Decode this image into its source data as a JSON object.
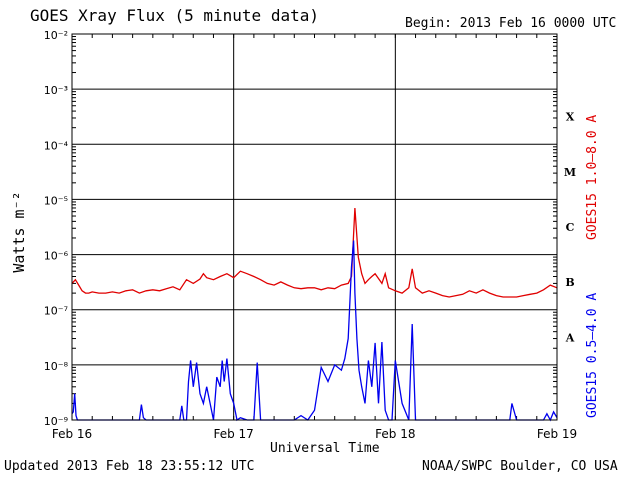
{
  "header": {
    "title": "GOES Xray Flux (5 minute data)",
    "begin": "Begin:  2013 Feb 16 0000 UTC"
  },
  "footer": {
    "updated": "Updated 2013 Feb 18 23:55:12 UTC",
    "credit": "NOAA/SWPC Boulder, CO USA"
  },
  "colors": {
    "long_channel": "#e00000",
    "short_channel": "#0000ee",
    "grid": "#000000"
  },
  "chart_data": {
    "type": "line",
    "title": "GOES Xray Flux (5 minute data)",
    "xlabel": "Universal Time",
    "ylabel": "Watts m⁻²",
    "yscale": "log",
    "ylim": [
      1e-09,
      0.01
    ],
    "xlim": [
      0,
      72
    ],
    "x_unit": "hours since 2013 Feb 16 0000 UTC",
    "xtick_labels": [
      {
        "x": 0,
        "label": "Feb 16"
      },
      {
        "x": 24,
        "label": "Feb 17"
      },
      {
        "x": 48,
        "label": "Feb 18"
      },
      {
        "x": 72,
        "label": "Feb 19"
      }
    ],
    "ytick_labels": [
      "10⁻⁹",
      "10⁻⁸",
      "10⁻⁷",
      "10⁻⁶",
      "10⁻⁵",
      "10⁻⁴",
      "10⁻³",
      "10⁻²"
    ],
    "flare_classes": [
      {
        "label": "A",
        "ylog": -7.5
      },
      {
        "label": "B",
        "ylog": -6.5
      },
      {
        "label": "C",
        "ylog": -5.5
      },
      {
        "label": "M",
        "ylog": -4.5
      },
      {
        "label": "X",
        "ylog": -3.5
      }
    ],
    "series": [
      {
        "name": "GOES15 1.0–8.0 A",
        "color": "#e00000",
        "x": [
          0,
          0.5,
          1,
          1.5,
          2,
          2.5,
          3,
          4,
          5,
          6,
          7,
          8,
          9,
          10,
          11,
          12,
          13,
          14,
          15,
          16,
          17,
          18,
          19,
          19.5,
          20,
          21,
          22,
          23,
          24,
          25,
          26,
          27,
          28,
          29,
          30,
          31,
          32,
          33,
          34,
          35,
          36,
          37,
          38,
          39,
          40,
          41,
          41.5,
          42,
          42.5,
          43,
          43.5,
          44,
          44.5,
          45,
          46,
          46.5,
          47,
          48,
          49,
          50,
          50.5,
          51,
          52,
          53,
          54,
          55,
          56,
          57,
          58,
          59,
          60,
          61,
          62,
          63,
          64,
          65,
          66,
          67,
          68,
          69,
          70,
          71,
          72
        ],
        "y": [
          3e-07,
          3.5e-07,
          2.8e-07,
          2.2e-07,
          2e-07,
          2e-07,
          2.1e-07,
          2e-07,
          2e-07,
          2.1e-07,
          2e-07,
          2.2e-07,
          2.3e-07,
          2e-07,
          2.2e-07,
          2.3e-07,
          2.2e-07,
          2.4e-07,
          2.6e-07,
          2.3e-07,
          3.5e-07,
          3e-07,
          3.6e-07,
          4.5e-07,
          3.8e-07,
          3.5e-07,
          4e-07,
          4.5e-07,
          3.8e-07,
          5e-07,
          4.5e-07,
          4e-07,
          3.5e-07,
          3e-07,
          2.8e-07,
          3.2e-07,
          2.8e-07,
          2.5e-07,
          2.4e-07,
          2.5e-07,
          2.5e-07,
          2.3e-07,
          2.5e-07,
          2.4e-07,
          2.8e-07,
          3e-07,
          4e-07,
          7e-06,
          9e-07,
          4.5e-07,
          3e-07,
          3.5e-07,
          4e-07,
          4.5e-07,
          3e-07,
          4.5e-07,
          2.5e-07,
          2.2e-07,
          2e-07,
          2.5e-07,
          5.5e-07,
          2.5e-07,
          2e-07,
          2.2e-07,
          2e-07,
          1.8e-07,
          1.7e-07,
          1.8e-07,
          1.9e-07,
          2.2e-07,
          2e-07,
          2.3e-07,
          2e-07,
          1.8e-07,
          1.7e-07,
          1.7e-07,
          1.7e-07,
          1.8e-07,
          1.9e-07,
          2e-07,
          2.3e-07,
          2.8e-07,
          2.5e-07
        ]
      },
      {
        "name": "GOES15 0.5–4.0 A",
        "color": "#0000ee",
        "x": [
          0,
          0.2,
          0.4,
          0.6,
          0.8,
          1,
          4,
          10,
          10.3,
          10.6,
          11,
          16,
          16.3,
          16.6,
          17,
          17.3,
          17.6,
          18,
          18.5,
          19,
          19.5,
          20,
          21,
          21.5,
          22,
          22.3,
          22.6,
          23,
          23.5,
          24,
          24.5,
          25,
          26,
          27,
          27.5,
          28,
          29,
          30,
          32,
          33,
          34,
          35,
          36,
          37,
          38,
          39,
          40,
          40.5,
          41,
          41.5,
          41.8,
          42,
          42.3,
          42.6,
          43,
          43.5,
          44,
          44.5,
          45,
          45.5,
          46,
          46.5,
          47,
          47.5,
          48,
          49,
          50,
          50.5,
          51,
          52,
          55,
          58,
          61,
          64,
          65,
          65.3,
          66,
          68,
          70,
          70.5,
          71,
          71.5,
          72
        ],
        "y": [
          1.3e-09,
          1.4e-09,
          3e-09,
          1.2e-09,
          1e-09,
          1e-09,
          1e-09,
          1e-09,
          1.9e-09,
          1.1e-09,
          1e-09,
          1e-09,
          1.8e-09,
          1e-09,
          1e-09,
          5e-09,
          1.2e-08,
          4e-09,
          1.1e-08,
          3e-09,
          2e-09,
          4e-09,
          1e-09,
          6e-09,
          4e-09,
          1.2e-08,
          5e-09,
          1.3e-08,
          3e-09,
          2e-09,
          1e-09,
          1.1e-09,
          1e-09,
          1e-09,
          1.1e-08,
          1e-09,
          1e-09,
          1e-09,
          1e-09,
          1e-09,
          1.2e-09,
          1e-09,
          1.5e-09,
          9e-09,
          5e-09,
          1e-08,
          8e-09,
          1.3e-08,
          3e-08,
          6e-07,
          1.8e-06,
          2e-07,
          3e-08,
          8e-09,
          4e-09,
          2e-09,
          1.2e-08,
          4e-09,
          2.5e-08,
          2e-09,
          2.6e-08,
          1.5e-09,
          1e-09,
          1e-09,
          1.2e-08,
          2e-09,
          1e-09,
          5.5e-08,
          1e-09,
          1e-09,
          1e-09,
          1e-09,
          1e-09,
          1e-09,
          1e-09,
          2e-09,
          1e-09,
          1e-09,
          1e-09,
          1.3e-09,
          1e-09,
          1.4e-09,
          1.1e-09
        ]
      }
    ]
  }
}
